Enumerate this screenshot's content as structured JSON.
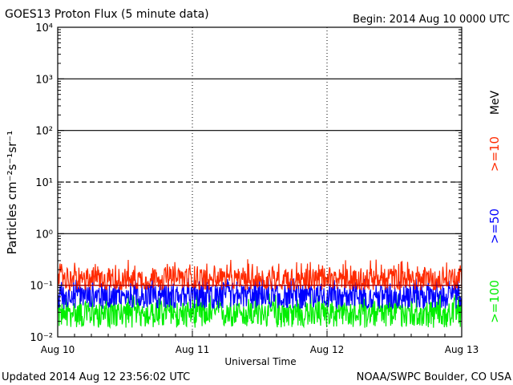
{
  "title": "GOES13 Proton Flux (5 minute data)",
  "begin": "Begin: 2014 Aug 10 0000 UTC",
  "updated": "Updated 2014 Aug 12 23:56:02 UTC",
  "credit": "NOAA/SWPC Boulder, CO USA",
  "xlabel": "Universal Time",
  "ylabel": "Particles cm⁻²s⁻¹sr⁻¹",
  "unit_label": "MeV",
  "colors": {
    "p10": "#ff2a00",
    "p50": "#0000ff",
    "p100": "#00ee00",
    "axis": "#000000"
  },
  "chart_data": {
    "type": "line",
    "x_ticks": [
      "Aug 10",
      "Aug 11",
      "Aug 12",
      "Aug 13"
    ],
    "x_range_days": [
      0,
      3
    ],
    "y_scale": "log",
    "y_range": [
      0.01,
      10000
    ],
    "y_ticks": [
      "10⁻²",
      "10⁻¹",
      "10⁰",
      "10¹",
      "10²",
      "10³",
      "10⁴"
    ],
    "reference_lines": [
      {
        "y": 1000,
        "style": "solid"
      },
      {
        "y": 100,
        "style": "solid"
      },
      {
        "y": 10,
        "style": "dashed"
      },
      {
        "y": 1,
        "style": "solid"
      },
      {
        "y": 0.1,
        "style": "solid-red"
      }
    ],
    "series": [
      {
        "name": ">=10",
        "color": "#ff2a00",
        "typical": 0.13,
        "low": 0.08,
        "high": 0.32
      },
      {
        "name": ">=50",
        "color": "#0000ff",
        "typical": 0.065,
        "low": 0.035,
        "high": 0.14
      },
      {
        "name": ">=100",
        "color": "#00ee00",
        "typical": 0.03,
        "low": 0.015,
        "high": 0.07
      }
    ]
  }
}
